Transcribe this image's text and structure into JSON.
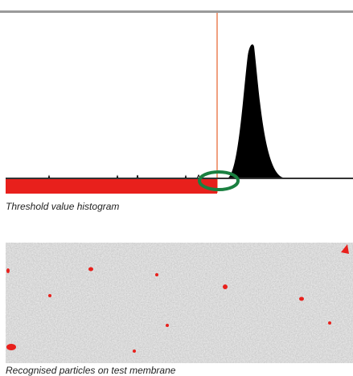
{
  "captions": {
    "histogram": "Threshold value histogram",
    "membrane": "Recognised particles on test membrane"
  }
}
